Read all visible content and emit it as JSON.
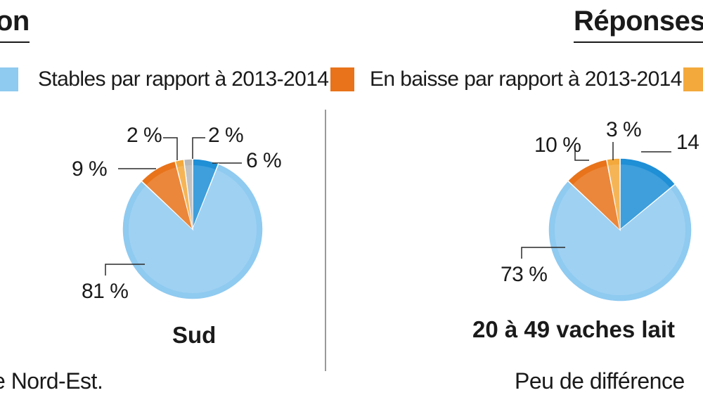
{
  "headings": {
    "left": "on",
    "right": "Réponses"
  },
  "legend": [
    {
      "label": "Stables par rapport à 2013-2014",
      "color": "#8fcaf0"
    },
    {
      "label": "En baisse par rapport à 2013-2014",
      "color": "#e8731a"
    },
    {
      "label": "",
      "color": "#f3a93c"
    }
  ],
  "captions": {
    "left": "e Nord-Est.",
    "right": "Peu de différence"
  },
  "chart_data": [
    {
      "type": "pie",
      "title": "Sud",
      "slices": [
        {
          "value": 6,
          "label": "6 %",
          "color": "#1f8fd6"
        },
        {
          "value": 81,
          "label": "81 %",
          "color": "#8fcaf0"
        },
        {
          "value": 9,
          "label": "9 %",
          "color": "#e8731a"
        },
        {
          "value": 2,
          "label": "2 %",
          "color": "#f3a93c"
        },
        {
          "value": 2,
          "label": "2 %",
          "color": "#b8b8b8"
        }
      ]
    },
    {
      "type": "pie",
      "title": "20 à 49 vaches lait",
      "slices": [
        {
          "value": 14,
          "label": "14",
          "color": "#1f8fd6"
        },
        {
          "value": 73,
          "label": "73 %",
          "color": "#8fcaf0"
        },
        {
          "value": 10,
          "label": "10 %",
          "color": "#e8731a"
        },
        {
          "value": 3,
          "label": "3 %",
          "color": "#f3a93c"
        }
      ]
    }
  ]
}
